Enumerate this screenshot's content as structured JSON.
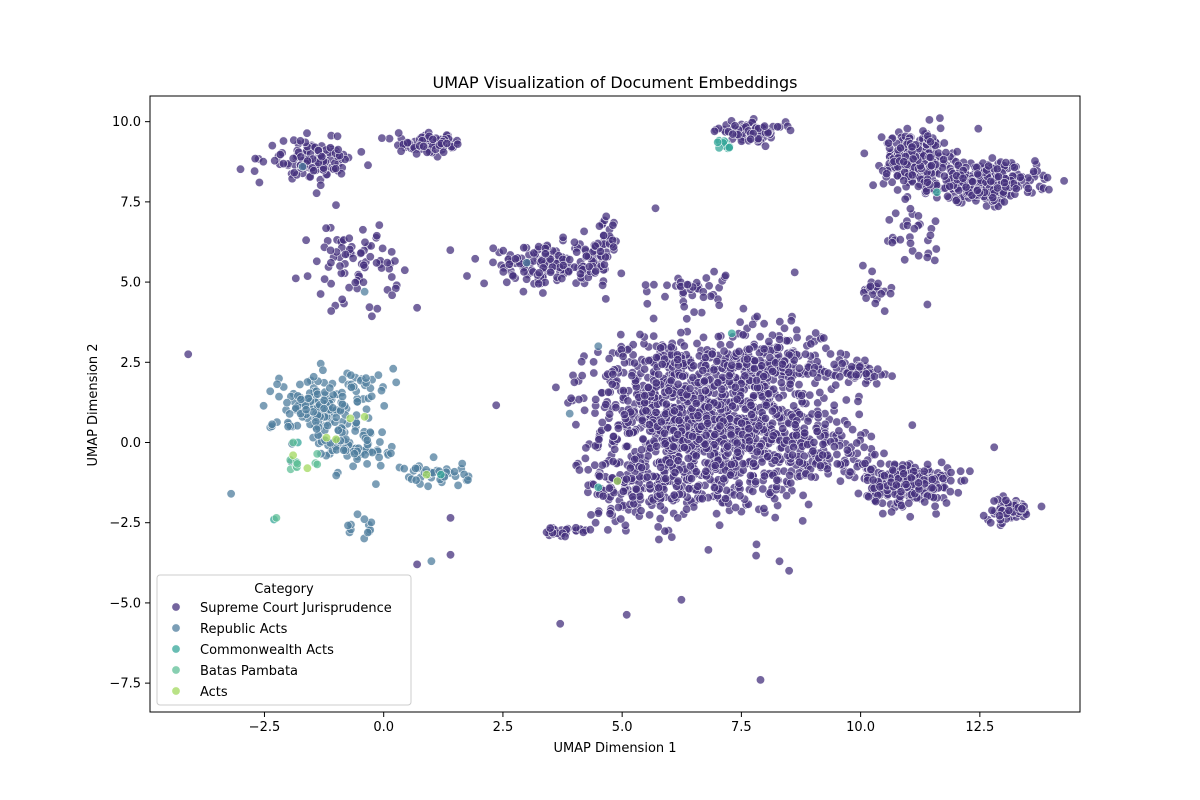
{
  "chart_data": {
    "type": "scatter",
    "title": "UMAP Visualization of Document Embeddings",
    "xlabel": "UMAP Dimension 1",
    "ylabel": "UMAP Dimension 2",
    "xlim": [
      -4.9,
      14.6
    ],
    "ylim": [
      -8.4,
      10.8
    ],
    "xticks": [
      -2.5,
      0.0,
      2.5,
      5.0,
      7.5,
      10.0,
      12.5
    ],
    "yticks": [
      -7.5,
      -5.0,
      -2.5,
      0.0,
      2.5,
      5.0,
      7.5,
      10.0
    ],
    "xtick_labels": [
      "−2.5",
      "0.0",
      "2.5",
      "5.0",
      "7.5",
      "10.0",
      "12.5"
    ],
    "ytick_labels": [
      "−7.5",
      "−5.0",
      "−2.5",
      "0.0",
      "2.5",
      "5.0",
      "7.5",
      "10.0"
    ],
    "grid": false,
    "legend": {
      "title": "Category",
      "placement": "lower-left"
    },
    "series": [
      {
        "name": "Supreme Court Jurisprudence",
        "color": "#46327e",
        "clusters": [
          {
            "cx": 6.8,
            "cy": 0.5,
            "sx": 1.1,
            "sy": 1.4,
            "n": 900
          },
          {
            "cx": 5.8,
            "cy": 1.5,
            "sx": 0.7,
            "sy": 0.9,
            "n": 250
          },
          {
            "cx": 8.2,
            "cy": 0.2,
            "sx": 0.9,
            "sy": 0.8,
            "n": 250
          },
          {
            "cx": 8.2,
            "cy": 2.6,
            "sx": 0.6,
            "sy": 0.5,
            "n": 150
          },
          {
            "cx": 5.4,
            "cy": -1.4,
            "sx": 0.6,
            "sy": 0.5,
            "n": 150
          },
          {
            "cx": 9.9,
            "cy": 2.2,
            "sx": 0.3,
            "sy": 0.15,
            "n": 60
          },
          {
            "cx": 9.5,
            "cy": -0.5,
            "sx": 0.5,
            "sy": 0.3,
            "n": 60
          },
          {
            "cx": 11.0,
            "cy": -1.3,
            "sx": 0.45,
            "sy": 0.35,
            "n": 250
          },
          {
            "cx": 13.1,
            "cy": -2.1,
            "sx": 0.25,
            "sy": 0.18,
            "n": 70
          },
          {
            "cx": 11.2,
            "cy": 8.8,
            "sx": 0.35,
            "sy": 0.45,
            "n": 300
          },
          {
            "cx": 12.6,
            "cy": 8.1,
            "sx": 0.55,
            "sy": 0.3,
            "n": 300
          },
          {
            "cx": 7.7,
            "cy": 9.7,
            "sx": 0.35,
            "sy": 0.15,
            "n": 80
          },
          {
            "cx": 3.5,
            "cy": 5.5,
            "sx": 0.7,
            "sy": 0.3,
            "n": 170
          },
          {
            "cx": 4.6,
            "cy": 6.2,
            "sx": 0.15,
            "sy": 0.4,
            "n": 40
          },
          {
            "cx": 1.0,
            "cy": 9.3,
            "sx": 0.35,
            "sy": 0.15,
            "n": 80
          },
          {
            "cx": -1.5,
            "cy": 8.8,
            "sx": 0.45,
            "sy": 0.3,
            "n": 120
          },
          {
            "cx": -0.6,
            "cy": 5.6,
            "sx": 0.45,
            "sy": 0.6,
            "n": 80
          },
          {
            "cx": 10.3,
            "cy": 4.8,
            "sx": 0.2,
            "sy": 0.2,
            "n": 20
          },
          {
            "cx": 3.8,
            "cy": -2.8,
            "sx": 0.3,
            "sy": 0.1,
            "n": 25
          },
          {
            "cx": 6.5,
            "cy": 4.8,
            "sx": 0.4,
            "sy": 0.3,
            "n": 40
          },
          {
            "cx": 11.0,
            "cy": 6.5,
            "sx": 0.4,
            "sy": 0.4,
            "n": 30
          }
        ],
        "points": [
          [
            -4.1,
            2.75
          ],
          [
            3.7,
            -5.65
          ],
          [
            7.9,
            -7.4
          ],
          [
            8.5,
            -4.0
          ],
          [
            12.8,
            -0.15
          ],
          [
            11.4,
            4.3
          ],
          [
            5.7,
            7.3
          ],
          [
            -1.1,
            4.1
          ],
          [
            0.7,
            4.2
          ],
          [
            1.4,
            -3.5
          ],
          [
            1.4,
            -2.35
          ],
          [
            0.7,
            -3.8
          ]
        ]
      },
      {
        "name": "Republic Acts",
        "color": "#4f7d9e",
        "clusters": [
          {
            "cx": -1.3,
            "cy": 1.0,
            "sx": 0.5,
            "sy": 0.6,
            "n": 160
          },
          {
            "cx": -0.5,
            "cy": -0.2,
            "sx": 0.35,
            "sy": 0.3,
            "n": 50
          },
          {
            "cx": 1.1,
            "cy": -1.0,
            "sx": 0.35,
            "sy": 0.2,
            "n": 40
          },
          {
            "cx": -0.5,
            "cy": 1.8,
            "sx": 0.25,
            "sy": 0.2,
            "n": 20
          },
          {
            "cx": -0.4,
            "cy": -2.8,
            "sx": 0.2,
            "sy": 0.3,
            "n": 12
          }
        ],
        "points": [
          [
            -3.2,
            -1.6
          ],
          [
            1.0,
            -3.7
          ],
          [
            3.9,
            0.9
          ],
          [
            -0.4,
            4.7
          ],
          [
            4.5,
            3.0
          ],
          [
            0.2,
            2.3
          ],
          [
            3.0,
            5.6
          ],
          [
            -1.7,
            8.6
          ]
        ]
      },
      {
        "name": "Commonwealth Acts",
        "color": "#35a79a",
        "clusters": [
          {
            "cx": 7.1,
            "cy": 9.25,
            "sx": 0.15,
            "sy": 0.1,
            "n": 10
          }
        ],
        "points": [
          [
            4.5,
            -1.4
          ],
          [
            -2.3,
            -2.4
          ],
          [
            11.6,
            7.8
          ],
          [
            7.3,
            3.4
          ],
          [
            -1.8,
            0.0
          ],
          [
            1.2,
            -1.0
          ]
        ]
      },
      {
        "name": "Batas Pambata",
        "color": "#5fbf97",
        "clusters": [
          {
            "cx": -1.7,
            "cy": -0.6,
            "sx": 0.15,
            "sy": 0.15,
            "n": 10
          }
        ],
        "points": [
          [
            -2.25,
            -2.35
          ],
          [
            -1.9,
            0.0
          ]
        ]
      },
      {
        "name": "Acts",
        "color": "#a2d85e",
        "clusters": [],
        "points": [
          [
            -0.7,
            0.75
          ],
          [
            -0.4,
            0.8
          ],
          [
            -1.0,
            0.1
          ],
          [
            -1.2,
            0.15
          ],
          [
            0.9,
            -1.0
          ],
          [
            -1.9,
            -0.4
          ],
          [
            -1.6,
            -0.8
          ],
          [
            4.9,
            -1.2
          ]
        ]
      }
    ]
  }
}
